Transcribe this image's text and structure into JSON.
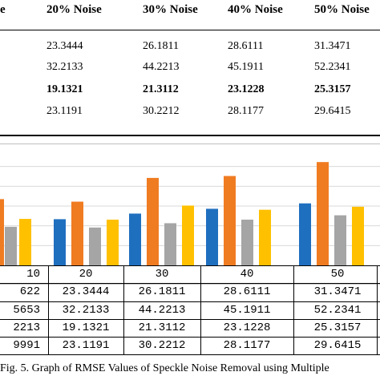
{
  "top_table": {
    "headers": [
      "e",
      "20% Noise",
      "30% Noise",
      "40% Noise",
      "50% Noise"
    ],
    "rows": [
      {
        "values": [
          "23.3444",
          "26.1811",
          "28.6111",
          "31.3471"
        ],
        "bold": false
      },
      {
        "values": [
          "32.2133",
          "44.2213",
          "45.1911",
          "52.2341"
        ],
        "bold": false
      },
      {
        "values": [
          "19.1321",
          "21.3112",
          "23.1228",
          "25.3157"
        ],
        "bold": true
      },
      {
        "values": [
          "23.1191",
          "30.2212",
          "28.1177",
          "29.6415"
        ],
        "bold": false
      }
    ]
  },
  "chart_data": {
    "type": "bar",
    "categories": [
      "10",
      "20",
      "30",
      "40",
      "50"
    ],
    "series": [
      {
        "values": [
          null,
          23.3444,
          26.1811,
          28.6111,
          31.3471
        ],
        "color": "#1f6fbf"
      },
      {
        "values": [
          null,
          32.2133,
          44.2213,
          45.1911,
          52.2341
        ],
        "color": "#f07c22"
      },
      {
        "values": [
          null,
          19.1321,
          21.3112,
          23.1228,
          25.3157
        ],
        "color": "#a5a5a5"
      },
      {
        "values": [
          null,
          23.1191,
          30.2212,
          28.1177,
          29.6415
        ],
        "color": "#ffc000"
      }
    ],
    "title": "",
    "xlabel": "",
    "ylabel": "",
    "ylim": [
      0,
      60
    ],
    "grid": true,
    "legend": "none"
  },
  "data_table": {
    "header": [
      "10",
      "20",
      "30",
      "40",
      "50"
    ],
    "rows": [
      [
        "622",
        "23.3444",
        "26.1811",
        "28.6111",
        "31.3471"
      ],
      [
        "5653",
        "32.2133",
        "44.2213",
        "45.1911",
        "52.2341"
      ],
      [
        "2213",
        "19.1321",
        "21.3112",
        "23.1228",
        "25.3157"
      ],
      [
        "9991",
        "23.1191",
        "30.2212",
        "28.1177",
        "29.6415"
      ]
    ]
  },
  "caption": "Fig. 5. Graph of RMSE Values of Speckle Noise Removal using Multiple"
}
